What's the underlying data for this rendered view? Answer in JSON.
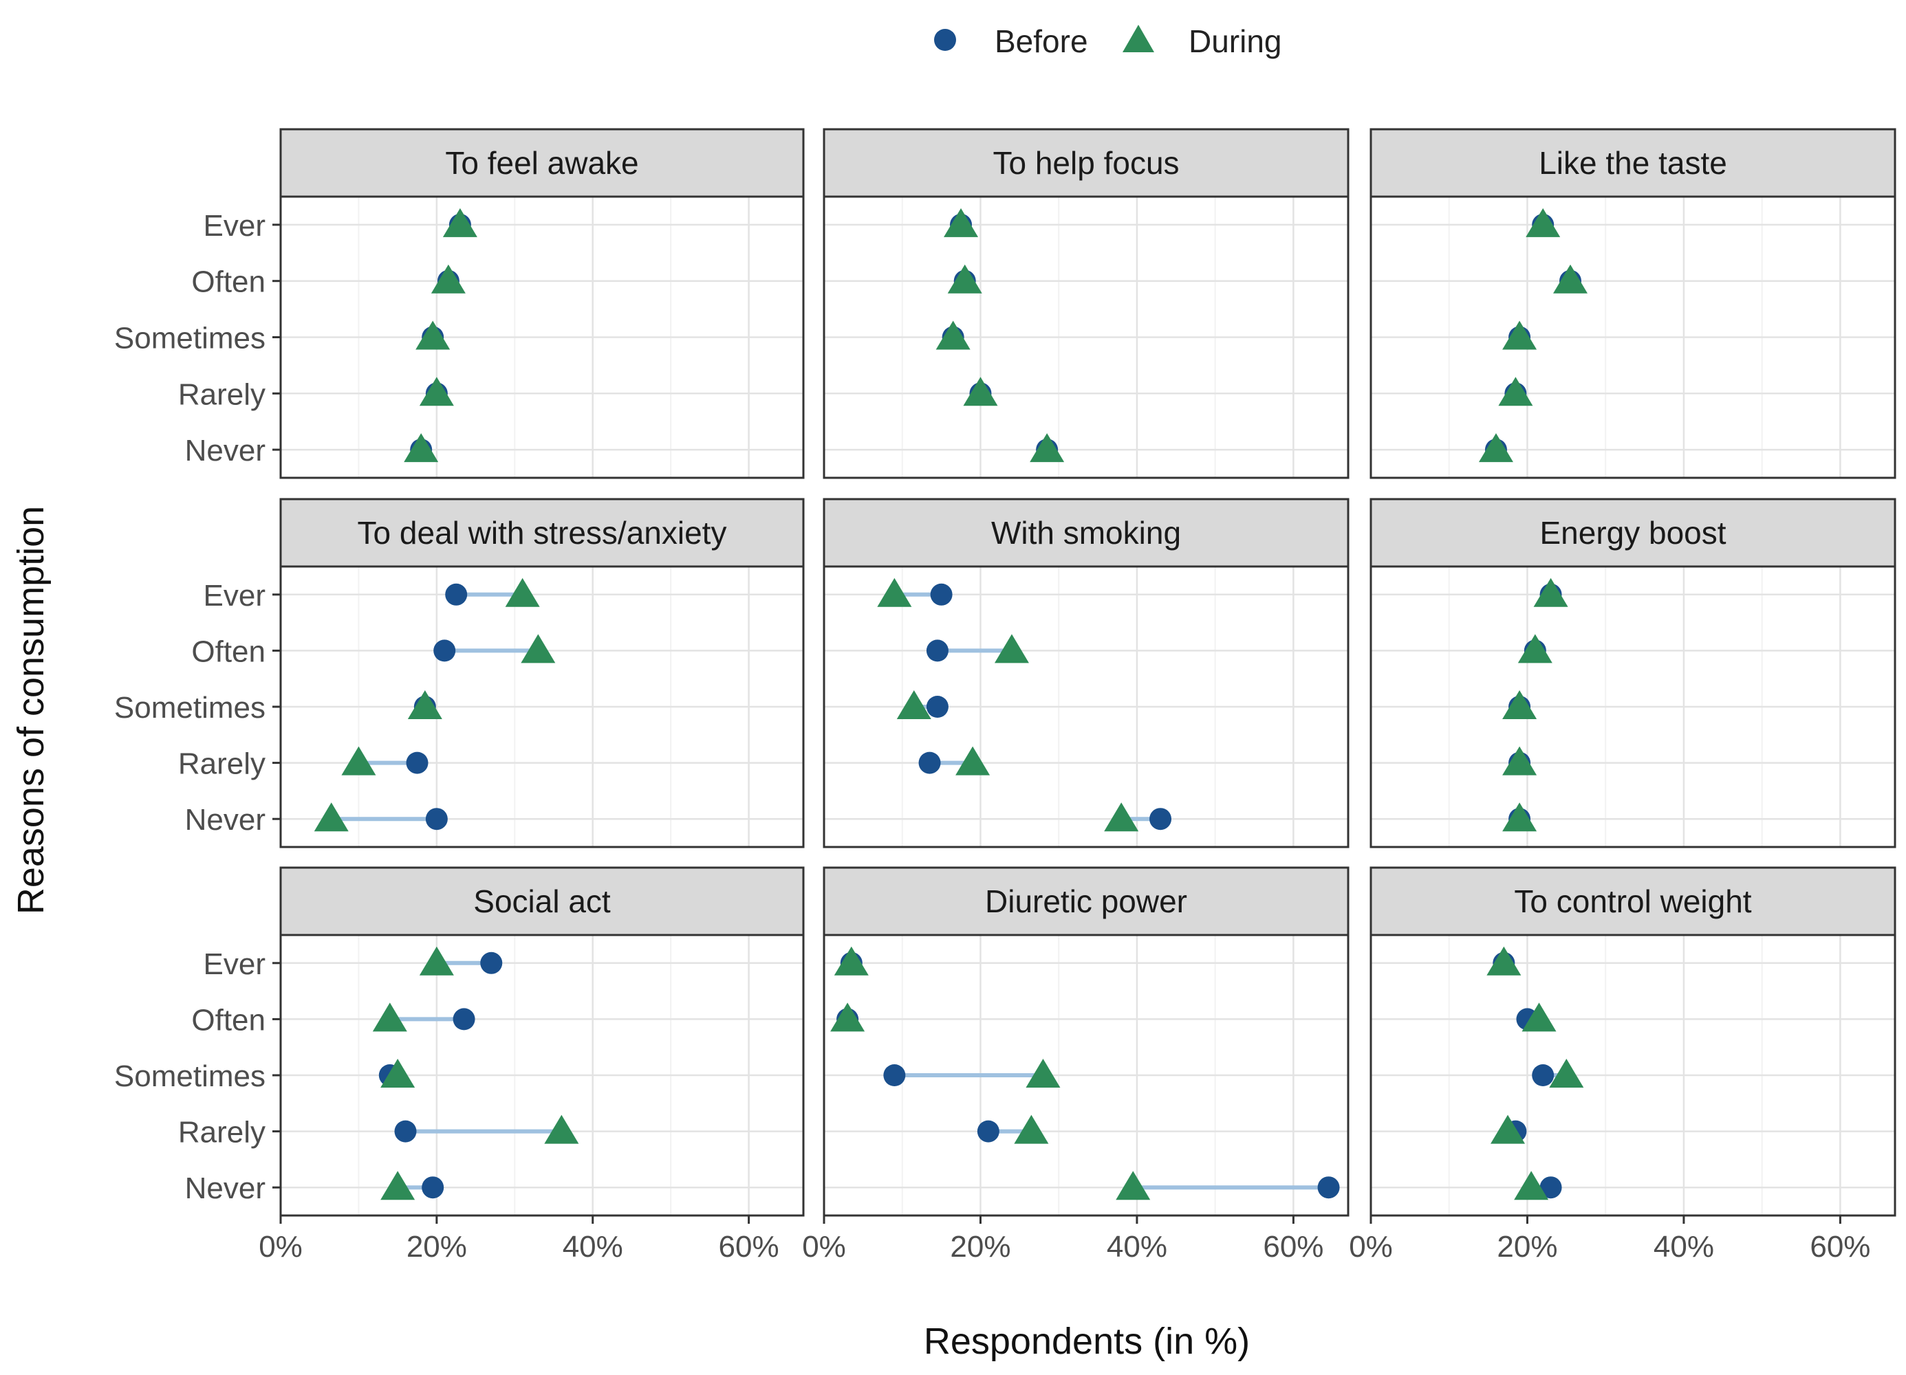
{
  "chart_data": {
    "type": "scatter",
    "subtype": "faceted-dumbbell",
    "xlabel": "Respondents (in %)",
    "ylabel": "Reasons of consumption",
    "xlim": [
      0,
      67
    ],
    "x_ticks": [
      0,
      20,
      40,
      60
    ],
    "x_tick_labels": [
      "0%",
      "20%",
      "40%",
      "60%"
    ],
    "categories": [
      "Ever",
      "Often",
      "Sometimes",
      "Rarely",
      "Never"
    ],
    "legend": {
      "position": "top-center",
      "entries": [
        {
          "name": "Before",
          "marker": "circle",
          "color": "#1a4f8c"
        },
        {
          "name": "During",
          "marker": "triangle",
          "color": "#2e8b57"
        }
      ]
    },
    "connector_color": "#9fc1e0",
    "strip_color": "#d9d9d9",
    "grid": true,
    "panels": [
      {
        "title": "To feel awake",
        "series": [
          {
            "name": "Before",
            "values": [
              23,
              21.5,
              19.5,
              20,
              18
            ]
          },
          {
            "name": "During",
            "values": [
              23,
              21.5,
              19.5,
              20,
              18
            ]
          }
        ]
      },
      {
        "title": "To help focus",
        "series": [
          {
            "name": "Before",
            "values": [
              17.5,
              18,
              16.5,
              20,
              28.5
            ]
          },
          {
            "name": "During",
            "values": [
              17.5,
              18,
              16.5,
              20,
              28.5
            ]
          }
        ]
      },
      {
        "title": "Like the taste",
        "series": [
          {
            "name": "Before",
            "values": [
              22,
              25.5,
              19,
              18.5,
              16
            ]
          },
          {
            "name": "During",
            "values": [
              22,
              25.5,
              19,
              18.5,
              16
            ]
          }
        ]
      },
      {
        "title": "To deal with stress/anxiety",
        "series": [
          {
            "name": "Before",
            "values": [
              22.5,
              21,
              18.5,
              17.5,
              20
            ]
          },
          {
            "name": "During",
            "values": [
              31,
              33,
              18.5,
              10,
              6.5
            ]
          }
        ]
      },
      {
        "title": "With smoking",
        "series": [
          {
            "name": "Before",
            "values": [
              15,
              14.5,
              14.5,
              13.5,
              43
            ]
          },
          {
            "name": "During",
            "values": [
              9,
              24,
              11.5,
              19,
              38
            ]
          }
        ]
      },
      {
        "title": "Energy boost",
        "series": [
          {
            "name": "Before",
            "values": [
              23,
              21,
              19,
              19,
              19
            ]
          },
          {
            "name": "During",
            "values": [
              23,
              21,
              19,
              19,
              19
            ]
          }
        ]
      },
      {
        "title": "Social act",
        "series": [
          {
            "name": "Before",
            "values": [
              27,
              23.5,
              14,
              16,
              19.5
            ]
          },
          {
            "name": "During",
            "values": [
              20,
              14,
              15,
              36,
              15
            ]
          }
        ]
      },
      {
        "title": "Diuretic power",
        "series": [
          {
            "name": "Before",
            "values": [
              3.5,
              3,
              9,
              21,
              64.5
            ]
          },
          {
            "name": "During",
            "values": [
              3.5,
              3,
              28,
              26.5,
              39.5
            ]
          }
        ]
      },
      {
        "title": "To control weight",
        "series": [
          {
            "name": "Before",
            "values": [
              17,
              20,
              22,
              18.5,
              23
            ]
          },
          {
            "name": "During",
            "values": [
              17,
              21.5,
              25,
              17.5,
              20.5
            ]
          }
        ]
      }
    ]
  }
}
